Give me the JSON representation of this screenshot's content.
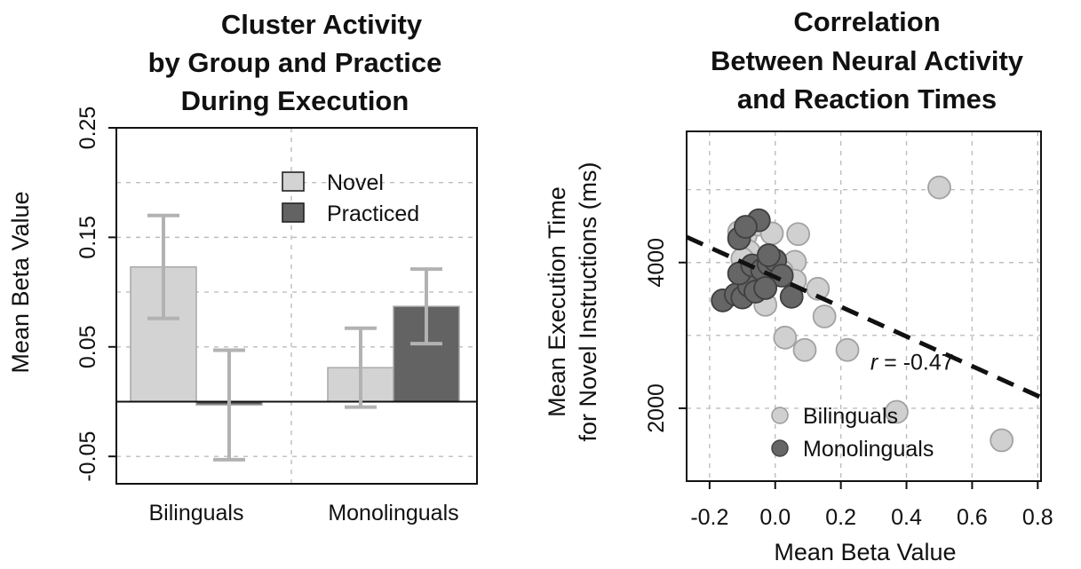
{
  "chart_data": [
    {
      "type": "bar",
      "title_lines": [
        "Cluster Activity",
        "by Group and Practice",
        "During Execution"
      ],
      "ylabel": "Mean Beta Value",
      "xlabel": "",
      "categories": [
        "Bilinguals",
        "Monolinguals"
      ],
      "series": [
        {
          "name": "Novel",
          "values": [
            0.123,
            0.031
          ],
          "errors": [
            0.047,
            0.036
          ]
        },
        {
          "name": "Practiced",
          "values": [
            -0.003,
            0.087
          ],
          "errors": [
            0.05,
            0.034
          ]
        }
      ],
      "ylim": [
        -0.075,
        0.25
      ],
      "yticks": [
        -0.05,
        0.05,
        0.15,
        0.25
      ],
      "ytick_labels": [
        "-0.05",
        "0.05",
        "0.15",
        "0.25"
      ],
      "gridlines": [
        -0.05,
        0.0,
        0.05,
        0.1,
        0.15,
        0.2
      ],
      "grid": true,
      "legend": "top-right",
      "colors": {
        "Novel": "#d3d3d3",
        "Practiced": "#636363",
        "error_bar": "#b2b2b2"
      }
    },
    {
      "type": "scatter",
      "title_lines": [
        "Correlation",
        "Between Neural Activity",
        "and Reaction Times"
      ],
      "xlabel": "Mean Beta Value",
      "ylabel_lines": [
        "Mean Execution Time",
        "for Novel Instructions (ms)"
      ],
      "xlim": [
        -0.27,
        0.81
      ],
      "ylim": [
        1000,
        5800
      ],
      "xticks": [
        -0.2,
        0.0,
        0.2,
        0.4,
        0.6,
        0.8
      ],
      "xtick_labels": [
        "-0.2",
        "0.0",
        "0.2",
        "0.4",
        "0.6",
        "0.8"
      ],
      "yticks": [
        2000,
        4000
      ],
      "ytick_labels": [
        "2000",
        "4000"
      ],
      "x_gridlines": [
        -0.2,
        0.0,
        0.2,
        0.4,
        0.6,
        0.8
      ],
      "y_gridlines": [
        2000,
        3000,
        4000,
        5000
      ],
      "grid": true,
      "legend": "bottom",
      "annotation": {
        "italic": "r",
        "text": " = -0.47",
        "x": 0.29,
        "y": 2530
      },
      "fit_line": {
        "x": [
          -0.27,
          0.81
        ],
        "y": [
          4350,
          2150
        ]
      },
      "colors": {
        "Bilinguals": "#d0d0d0",
        "Monolinguals": "#666666",
        "fit_line": "#111111"
      },
      "series": [
        {
          "name": "Bilinguals",
          "x": [
            0.5,
            -0.11,
            -0.09,
            -0.05,
            -0.01,
            0.07,
            0.06,
            0.01,
            -0.04,
            0.13,
            0.15,
            0.03,
            0.09,
            0.22,
            -0.07,
            0.02,
            -0.08,
            -0.1,
            0.06,
            -0.03,
            0.37,
            0.69
          ],
          "y": [
            5030,
            4420,
            4370,
            4520,
            4400,
            4390,
            4010,
            3870,
            3730,
            3640,
            3260,
            2970,
            2800,
            2800,
            3720,
            3880,
            4150,
            4050,
            3750,
            3420,
            1950,
            1560
          ]
        },
        {
          "name": "Monolinguals",
          "x": [
            -0.16,
            -0.12,
            -0.1,
            -0.08,
            -0.06,
            -0.11,
            -0.07,
            -0.04,
            -0.02,
            0.0,
            0.02,
            0.05,
            -0.11,
            -0.05,
            -0.09,
            -0.02,
            -0.03
          ],
          "y": [
            3480,
            3560,
            3520,
            3680,
            3600,
            3850,
            3960,
            3900,
            3980,
            4030,
            3820,
            3530,
            4330,
            4580,
            4490,
            4100,
            3650
          ]
        }
      ]
    }
  ]
}
